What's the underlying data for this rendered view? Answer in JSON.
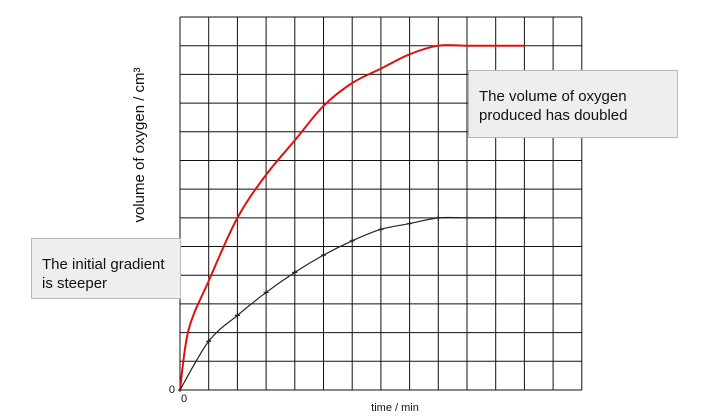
{
  "chart_data": {
    "type": "line",
    "x_label": "time / min",
    "y_label": "volume of oxygen / cm³",
    "xlim": [
      0,
      14
    ],
    "ylim": [
      0,
      13
    ],
    "xticks": [
      0
    ],
    "yticks": [
      0
    ],
    "grid": true,
    "series": [
      {
        "color": "#e01010",
        "markers": false,
        "x": [
          0,
          0.3,
          1,
          2,
          3,
          4,
          5,
          6,
          7,
          8,
          9,
          10,
          11,
          12
        ],
        "values": [
          0,
          2.1,
          3.8,
          6,
          7.5,
          8.7,
          9.9,
          10.7,
          11.2,
          11.7,
          12,
          12,
          12,
          12
        ]
      },
      {
        "color": "#222222",
        "markers": true,
        "x": [
          0,
          1,
          2,
          3,
          4,
          5,
          6,
          7,
          8,
          9,
          10,
          11,
          12
        ],
        "values": [
          0,
          1.7,
          2.6,
          3.4,
          4.1,
          4.7,
          5.2,
          5.6,
          5.8,
          6,
          6,
          6,
          6
        ]
      }
    ],
    "annotations": [
      {
        "text": "The volume of oxygen produced has doubled"
      },
      {
        "text": "The initial gradient is steeper"
      }
    ]
  }
}
